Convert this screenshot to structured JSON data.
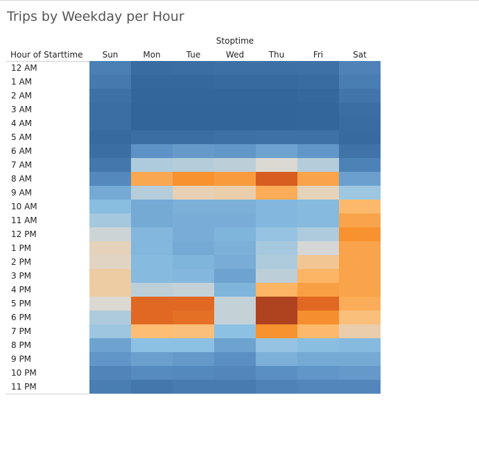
{
  "chart_data": {
    "type": "heatmap",
    "title": "Trips by Weekday per Hour",
    "column_group_label": "Stoptime",
    "row_header_label": "Hour of Starttime",
    "columns": [
      "Sun",
      "Mon",
      "Tue",
      "Wed",
      "Thu",
      "Fri",
      "Sat"
    ],
    "rows": [
      "12 AM",
      "1 AM",
      "2 AM",
      "3 AM",
      "4 AM",
      "5 AM",
      "6 AM",
      "7 AM",
      "8 AM",
      "9 AM",
      "10 AM",
      "11 AM",
      "12 PM",
      "1 PM",
      "2 PM",
      "3 PM",
      "4 PM",
      "5 PM",
      "6 PM",
      "7 PM",
      "8 PM",
      "9 PM",
      "10 PM",
      "11 PM"
    ],
    "scale": {
      "min": 0,
      "max": 100,
      "low_color": "#2c5f94",
      "mid_color": "#dcd9d3",
      "high_color": "#a03a1f"
    },
    "values": [
      [
        17,
        7,
        8,
        9,
        9,
        10,
        19
      ],
      [
        14,
        5,
        5,
        6,
        6,
        7,
        16
      ],
      [
        10,
        4,
        4,
        4,
        4,
        5,
        12
      ],
      [
        8,
        3,
        3,
        3,
        3,
        4,
        8
      ],
      [
        8,
        3,
        3,
        3,
        3,
        4,
        7
      ],
      [
        6,
        8,
        8,
        9,
        10,
        10,
        6
      ],
      [
        8,
        26,
        28,
        27,
        31,
        27,
        11
      ],
      [
        13,
        44,
        45,
        46,
        50,
        45,
        18
      ],
      [
        22,
        67,
        72,
        70,
        85,
        68,
        30
      ],
      [
        33,
        45,
        54,
        55,
        66,
        53,
        42
      ],
      [
        39,
        33,
        35,
        35,
        37,
        38,
        63
      ],
      [
        43,
        33,
        34,
        34,
        37,
        38,
        68
      ],
      [
        48,
        37,
        34,
        36,
        41,
        44,
        72
      ],
      [
        53,
        37,
        33,
        35,
        43,
        49,
        68
      ],
      [
        52,
        38,
        36,
        34,
        44,
        58,
        68
      ],
      [
        56,
        38,
        37,
        31,
        46,
        64,
        68
      ],
      [
        56,
        46,
        47,
        36,
        64,
        69,
        68
      ],
      [
        50,
        82,
        82,
        47,
        96,
        82,
        66
      ],
      [
        44,
        82,
        80,
        47,
        96,
        73,
        61
      ],
      [
        42,
        62,
        61,
        40,
        72,
        63,
        55
      ],
      [
        31,
        40,
        40,
        31,
        41,
        39,
        38
      ],
      [
        27,
        30,
        28,
        25,
        35,
        33,
        33
      ],
      [
        20,
        23,
        22,
        21,
        25,
        27,
        28
      ],
      [
        16,
        13,
        15,
        15,
        19,
        21,
        21
      ]
    ]
  }
}
